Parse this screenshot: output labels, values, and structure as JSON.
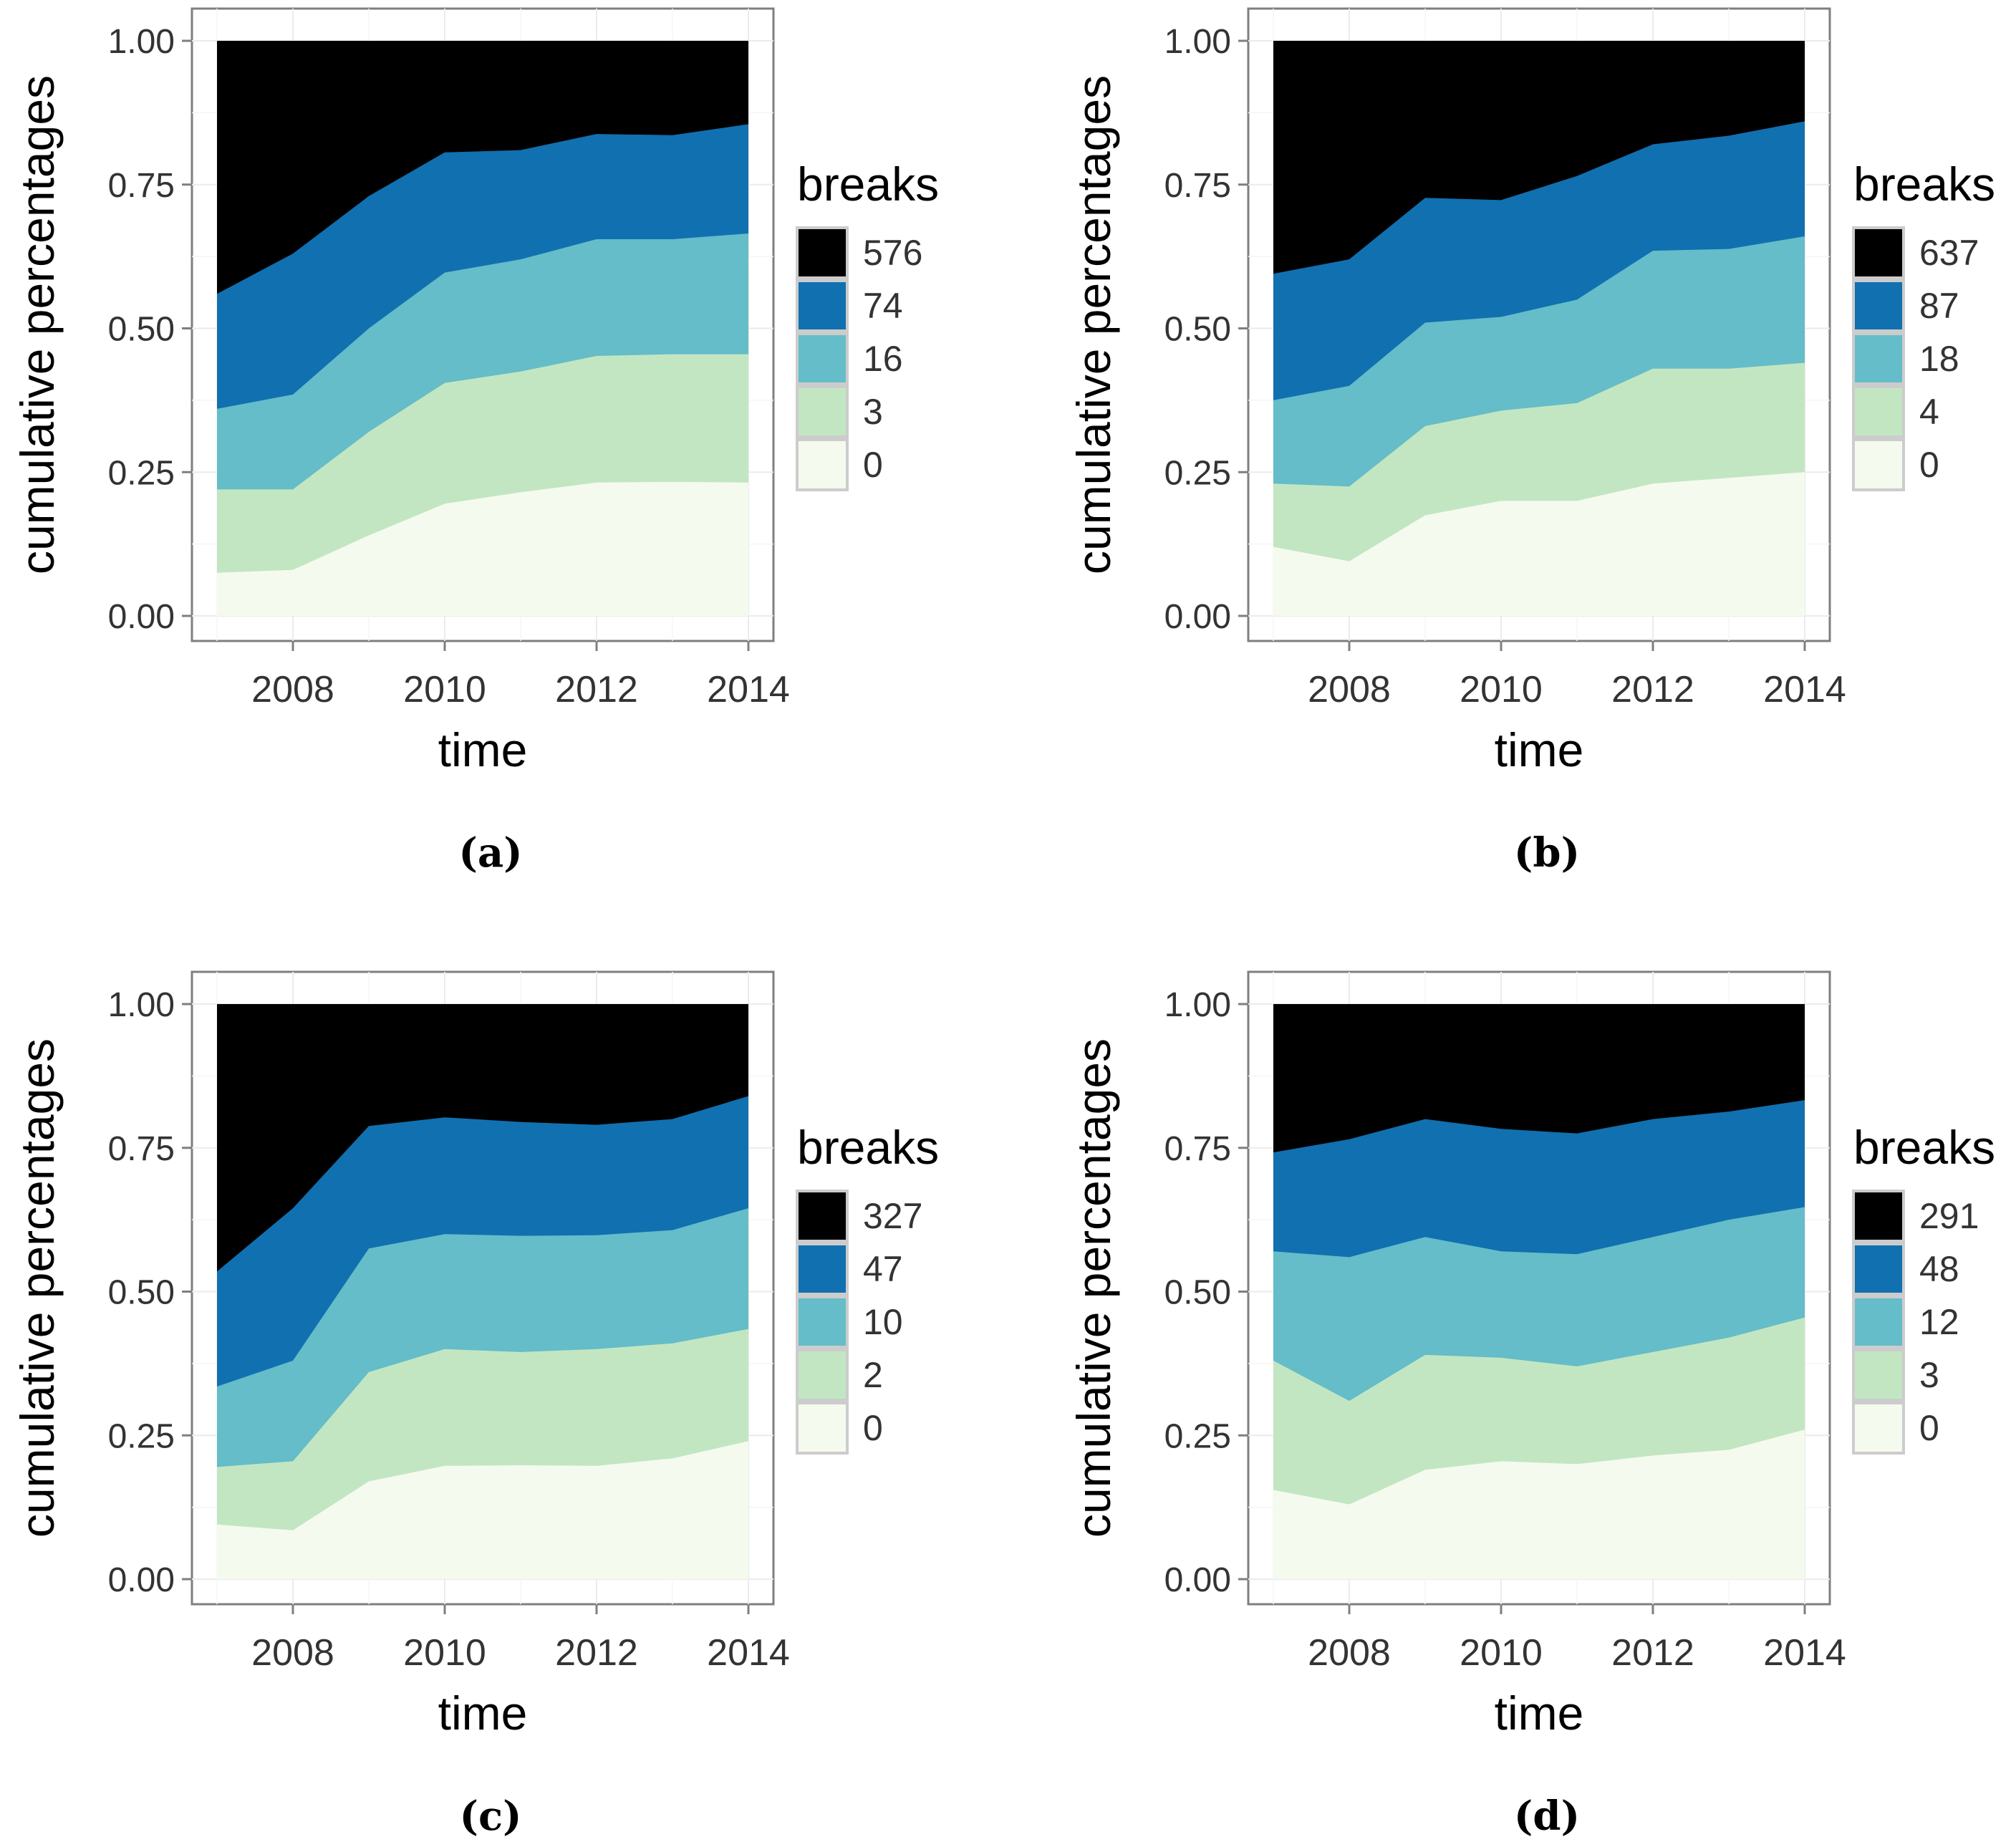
{
  "colors": {
    "576": "#000000",
    "level_4": "#000000",
    "level_3": "#1170b0",
    "level_2": "#64bdc8",
    "level_1": "#c3e6c2",
    "level_0": "#f5faee",
    "panel_border": "#7f7f7f",
    "grid": "#ebebeb"
  },
  "chart_data": [
    {
      "type": "area",
      "caption": "(a)",
      "xlabel": "time",
      "ylabel": "cumulative percentages",
      "xlim": [
        2007,
        2014
      ],
      "ylim": [
        0,
        1
      ],
      "xticks": [
        "2008",
        "2010",
        "2012",
        "2014"
      ],
      "yticks": [
        "0.00",
        "0.25",
        "0.50",
        "0.75",
        "1.00"
      ],
      "legend_title": "breaks",
      "legend_position": "right",
      "x": [
        2007,
        2008,
        2009,
        2010,
        2011,
        2012,
        2013,
        2014
      ],
      "series": [
        {
          "name": "0",
          "cumulative": [
            0.075,
            0.08,
            0.14,
            0.195,
            0.215,
            0.232,
            0.233,
            0.232
          ]
        },
        {
          "name": "3",
          "cumulative": [
            0.22,
            0.22,
            0.32,
            0.405,
            0.425,
            0.452,
            0.455,
            0.455
          ]
        },
        {
          "name": "16",
          "cumulative": [
            0.36,
            0.385,
            0.5,
            0.597,
            0.62,
            0.655,
            0.655,
            0.665
          ]
        },
        {
          "name": "74",
          "cumulative": [
            0.56,
            0.63,
            0.73,
            0.806,
            0.81,
            0.838,
            0.836,
            0.855
          ]
        },
        {
          "name": "576",
          "cumulative": [
            1.0,
            1.0,
            1.0,
            1.0,
            1.0,
            1.0,
            1.0,
            1.0
          ]
        }
      ],
      "legend_order": [
        "576",
        "74",
        "16",
        "3",
        "0"
      ]
    },
    {
      "type": "area",
      "caption": "(b)",
      "xlabel": "time",
      "ylabel": "cumulative percentages",
      "xlim": [
        2007,
        2014
      ],
      "ylim": [
        0,
        1
      ],
      "xticks": [
        "2008",
        "2010",
        "2012",
        "2014"
      ],
      "yticks": [
        "0.00",
        "0.25",
        "0.50",
        "0.75",
        "1.00"
      ],
      "legend_title": "breaks",
      "legend_position": "right",
      "x": [
        2007,
        2008,
        2009,
        2010,
        2011,
        2012,
        2013,
        2014
      ],
      "series": [
        {
          "name": "0",
          "cumulative": [
            0.12,
            0.095,
            0.175,
            0.2,
            0.2,
            0.23,
            0.24,
            0.25
          ]
        },
        {
          "name": "4",
          "cumulative": [
            0.23,
            0.225,
            0.33,
            0.357,
            0.37,
            0.43,
            0.43,
            0.44
          ]
        },
        {
          "name": "18",
          "cumulative": [
            0.375,
            0.4,
            0.51,
            0.52,
            0.55,
            0.635,
            0.638,
            0.66
          ]
        },
        {
          "name": "87",
          "cumulative": [
            0.595,
            0.62,
            0.727,
            0.723,
            0.765,
            0.82,
            0.835,
            0.86
          ]
        },
        {
          "name": "637",
          "cumulative": [
            1.0,
            1.0,
            1.0,
            1.0,
            1.0,
            1.0,
            1.0,
            1.0
          ]
        }
      ],
      "legend_order": [
        "637",
        "87",
        "18",
        "4",
        "0"
      ]
    },
    {
      "type": "area",
      "caption": "(c)",
      "xlabel": "time",
      "ylabel": "cumulative percentages",
      "xlim": [
        2007,
        2014
      ],
      "ylim": [
        0,
        1
      ],
      "xticks": [
        "2008",
        "2010",
        "2012",
        "2014"
      ],
      "yticks": [
        "0.00",
        "0.25",
        "0.50",
        "0.75",
        "1.00"
      ],
      "legend_title": "breaks",
      "legend_position": "right",
      "x": [
        2007,
        2008,
        2009,
        2010,
        2011,
        2012,
        2013,
        2014
      ],
      "series": [
        {
          "name": "0",
          "cumulative": [
            0.095,
            0.085,
            0.17,
            0.197,
            0.198,
            0.197,
            0.21,
            0.24
          ]
        },
        {
          "name": "2",
          "cumulative": [
            0.195,
            0.205,
            0.36,
            0.4,
            0.395,
            0.4,
            0.41,
            0.435
          ]
        },
        {
          "name": "10",
          "cumulative": [
            0.335,
            0.38,
            0.575,
            0.6,
            0.597,
            0.598,
            0.607,
            0.645
          ]
        },
        {
          "name": "47",
          "cumulative": [
            0.535,
            0.645,
            0.788,
            0.803,
            0.795,
            0.79,
            0.8,
            0.84
          ]
        },
        {
          "name": "327",
          "cumulative": [
            1.0,
            1.0,
            1.0,
            1.0,
            1.0,
            1.0,
            1.0,
            1.0
          ]
        }
      ],
      "legend_order": [
        "327",
        "47",
        "10",
        "2",
        "0"
      ]
    },
    {
      "type": "area",
      "caption": "(d)",
      "xlabel": "time",
      "ylabel": "cumulative percentages",
      "xlim": [
        2007,
        2014
      ],
      "ylim": [
        0,
        1
      ],
      "xticks": [
        "2008",
        "2010",
        "2012",
        "2014"
      ],
      "yticks": [
        "0.00",
        "0.25",
        "0.50",
        "0.75",
        "1.00"
      ],
      "legend_title": "breaks",
      "legend_position": "right",
      "x": [
        2007,
        2008,
        2009,
        2010,
        2011,
        2012,
        2013,
        2014
      ],
      "series": [
        {
          "name": "0",
          "cumulative": [
            0.155,
            0.13,
            0.19,
            0.205,
            0.2,
            0.215,
            0.225,
            0.26
          ]
        },
        {
          "name": "3",
          "cumulative": [
            0.38,
            0.31,
            0.39,
            0.385,
            0.37,
            0.395,
            0.42,
            0.455
          ]
        },
        {
          "name": "12",
          "cumulative": [
            0.57,
            0.56,
            0.595,
            0.57,
            0.565,
            0.595,
            0.625,
            0.647
          ]
        },
        {
          "name": "48",
          "cumulative": [
            0.742,
            0.765,
            0.8,
            0.783,
            0.775,
            0.8,
            0.813,
            0.833
          ]
        },
        {
          "name": "291",
          "cumulative": [
            1.0,
            1.0,
            1.0,
            1.0,
            1.0,
            1.0,
            1.0,
            1.0
          ]
        }
      ],
      "legend_order": [
        "291",
        "48",
        "12",
        "3",
        "0"
      ]
    }
  ]
}
